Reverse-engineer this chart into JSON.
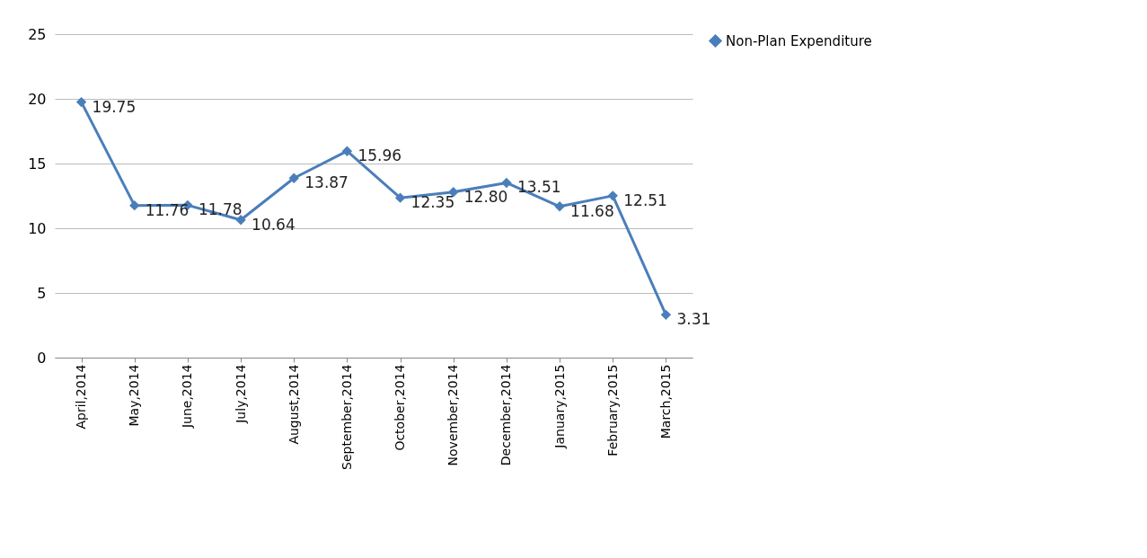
{
  "chart_data": {
    "type": "line",
    "categories": [
      "April,2014",
      "May,2014",
      "June,2014",
      "July,2014",
      "August,2014",
      "September,2014",
      "October,2014",
      "November,2014",
      "December,2014",
      "January,2015",
      "February,2015",
      "March,2015"
    ],
    "series": [
      {
        "name": "Non-Plan Expenditure",
        "color": "#4a7ebb",
        "values": [
          19.75,
          11.76,
          11.78,
          10.64,
          13.87,
          15.96,
          12.35,
          12.8,
          13.51,
          11.68,
          12.51,
          3.31
        ],
        "value_labels": [
          "19.75",
          "11.76",
          "11.78",
          "10.64",
          "13.87",
          "15.96",
          "12.35",
          "12.80",
          "13.51",
          "11.68",
          "12.51",
          "3.31"
        ]
      }
    ],
    "ylim": [
      0,
      25
    ],
    "yticks": [
      0,
      5,
      10,
      15,
      20,
      25
    ],
    "grid": "y",
    "legend": "right",
    "marker": "diamond",
    "line_style": "solid"
  }
}
